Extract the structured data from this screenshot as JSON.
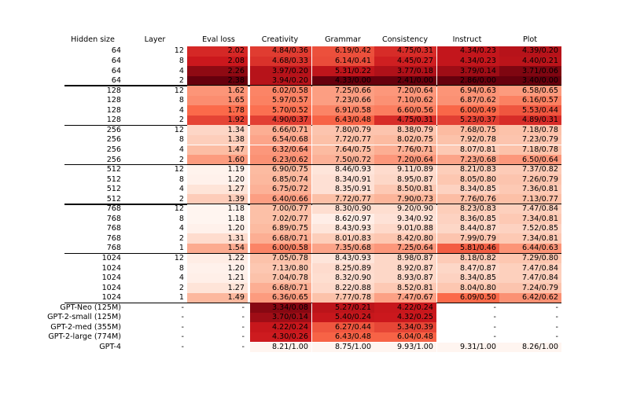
{
  "chart_data": {
    "type": "table",
    "title": "",
    "columns": [
      "Hidden size",
      "Layer",
      "Eval loss",
      "Creativity",
      "Grammar",
      "Consistency",
      "Instruct",
      "Plot"
    ],
    "groups": [
      [
        {
          "hidden": "64",
          "layer": "12",
          "eval": "2.02",
          "creativity": "4.84/0.36",
          "grammar": "6.19/0.42",
          "consistency": "4.75/0.31",
          "instruct": "4.34/0.23",
          "plot": "4.39/0.20"
        },
        {
          "hidden": "64",
          "layer": "8",
          "eval": "2.08",
          "creativity": "4.68/0.33",
          "grammar": "6.14/0.41",
          "consistency": "4.45/0.27",
          "instruct": "4.34/0.23",
          "plot": "4.40/0.21"
        },
        {
          "hidden": "64",
          "layer": "4",
          "eval": "2.26",
          "creativity": "3.97/0.20",
          "grammar": "5.31/0.22",
          "consistency": "3.77/0.18",
          "instruct": "3.79/0.14",
          "plot": "3.71/0.06"
        },
        {
          "hidden": "64",
          "layer": "2",
          "eval": "2.38",
          "creativity": "3.94/0.20",
          "grammar": "4.33/0.00",
          "consistency": "2.41/0.00",
          "instruct": "2.86/0.00",
          "plot": "3.40/0.00"
        }
      ],
      [
        {
          "hidden": "128",
          "layer": "12",
          "eval": "1.62",
          "creativity": "6.02/0.58",
          "grammar": "7.25/0.66",
          "consistency": "7.20/0.64",
          "instruct": "6.94/0.63",
          "plot": "6.58/0.65"
        },
        {
          "hidden": "128",
          "layer": "8",
          "eval": "1.65",
          "creativity": "5.97/0.57",
          "grammar": "7.23/0.66",
          "consistency": "7.10/0.62",
          "instruct": "6.87/0.62",
          "plot": "6.16/0.57"
        },
        {
          "hidden": "128",
          "layer": "4",
          "eval": "1.78",
          "creativity": "5.70/0.52",
          "grammar": "6.91/0.58",
          "consistency": "6.60/0.56",
          "instruct": "6.00/0.49",
          "plot": "5.53/0.44"
        },
        {
          "hidden": "128",
          "layer": "2",
          "eval": "1.92",
          "creativity": "4.90/0.37",
          "grammar": "6.43/0.48",
          "consistency": "4.75/0.31",
          "instruct": "5.23/0.37",
          "plot": "4.89/0.31"
        }
      ],
      [
        {
          "hidden": "256",
          "layer": "12",
          "eval": "1.34",
          "creativity": "6.66/0.71",
          "grammar": "7.80/0.79",
          "consistency": "8.38/0.79",
          "instruct": "7.68/0.75",
          "plot": "7.18/0.78"
        },
        {
          "hidden": "256",
          "layer": "8",
          "eval": "1.38",
          "creativity": "6.54/0.68",
          "grammar": "7.72/0.77",
          "consistency": "8.02/0.75",
          "instruct": "7.92/0.78",
          "plot": "7.23/0.79"
        },
        {
          "hidden": "256",
          "layer": "4",
          "eval": "1.47",
          "creativity": "6.32/0.64",
          "grammar": "7.64/0.75",
          "consistency": "7.76/0.71",
          "instruct": "8.07/0.81",
          "plot": "7.18/0.78"
        },
        {
          "hidden": "256",
          "layer": "2",
          "eval": "1.60",
          "creativity": "6.23/0.62",
          "grammar": "7.50/0.72",
          "consistency": "7.20/0.64",
          "instruct": "7.23/0.68",
          "plot": "6.50/0.64"
        }
      ],
      [
        {
          "hidden": "512",
          "layer": "12",
          "eval": "1.19",
          "creativity": "6.90/0.75",
          "grammar": "8.46/0.93",
          "consistency": "9.11/0.89",
          "instruct": "8.21/0.83",
          "plot": "7.37/0.82"
        },
        {
          "hidden": "512",
          "layer": "8",
          "eval": "1.20",
          "creativity": "6.85/0.74",
          "grammar": "8.34/0.91",
          "consistency": "8.95/0.87",
          "instruct": "8.05/0.80",
          "plot": "7.26/0.79"
        },
        {
          "hidden": "512",
          "layer": "4",
          "eval": "1.27",
          "creativity": "6.75/0.72",
          "grammar": "8.35/0.91",
          "consistency": "8.50/0.81",
          "instruct": "8.34/0.85",
          "plot": "7.36/0.81"
        },
        {
          "hidden": "512",
          "layer": "2",
          "eval": "1.39",
          "creativity": "6.40/0.66",
          "grammar": "7.72/0.77",
          "consistency": "7.90/0.73",
          "instruct": "7.76/0.76",
          "plot": "7.13/0.77"
        }
      ],
      [
        {
          "hidden": "768",
          "layer": "12",
          "eval": "1.18",
          "creativity": "7.00/0.77",
          "grammar": "8.30/0.90",
          "consistency": "9.20/0.90",
          "instruct": "8.23/0.83",
          "plot": "7.47/0.84"
        },
        {
          "hidden": "768",
          "layer": "8",
          "eval": "1.18",
          "creativity": "7.02/0.77",
          "grammar": "8.62/0.97",
          "consistency": "9.34/0.92",
          "instruct": "8.36/0.85",
          "plot": "7.34/0.81"
        },
        {
          "hidden": "768",
          "layer": "4",
          "eval": "1.20",
          "creativity": "6.89/0.75",
          "grammar": "8.43/0.93",
          "consistency": "9.01/0.88",
          "instruct": "8.44/0.87",
          "plot": "7.52/0.85"
        },
        {
          "hidden": "768",
          "layer": "2",
          "eval": "1.31",
          "creativity": "6.68/0.71",
          "grammar": "8.01/0.83",
          "consistency": "8.42/0.80",
          "instruct": "7.99/0.79",
          "plot": "7.34/0.81"
        },
        {
          "hidden": "768",
          "layer": "1",
          "eval": "1.54",
          "creativity": "6.00/0.58",
          "grammar": "7.35/0.68",
          "consistency": "7.25/0.64",
          "instruct": "5.81/0.46",
          "plot": "6.44/0.63"
        }
      ],
      [
        {
          "hidden": "1024",
          "layer": "12",
          "eval": "1.22",
          "creativity": "7.05/0.78",
          "grammar": "8.43/0.93",
          "consistency": "8.98/0.87",
          "instruct": "8.18/0.82",
          "plot": "7.29/0.80"
        },
        {
          "hidden": "1024",
          "layer": "8",
          "eval": "1.20",
          "creativity": "7.13/0.80",
          "grammar": "8.25/0.89",
          "consistency": "8.92/0.87",
          "instruct": "8.47/0.87",
          "plot": "7.47/0.84"
        },
        {
          "hidden": "1024",
          "layer": "4",
          "eval": "1.21",
          "creativity": "7.04/0.78",
          "grammar": "8.32/0.90",
          "consistency": "8.93/0.87",
          "instruct": "8.34/0.85",
          "plot": "7.47/0.84"
        },
        {
          "hidden": "1024",
          "layer": "2",
          "eval": "1.27",
          "creativity": "6.68/0.71",
          "grammar": "8.22/0.88",
          "consistency": "8.52/0.81",
          "instruct": "8.04/0.80",
          "plot": "7.24/0.79"
        },
        {
          "hidden": "1024",
          "layer": "1",
          "eval": "1.49",
          "creativity": "6.36/0.65",
          "grammar": "7.77/0.78",
          "consistency": "7.47/0.67",
          "instruct": "6.09/0.50",
          "plot": "6.42/0.62"
        }
      ],
      [
        {
          "hidden": "GPT-Neo (125M)",
          "layer": "-",
          "eval": "-",
          "creativity": "3.34/0.08",
          "grammar": "5.27/0.21",
          "consistency": "4.22/0.24",
          "instruct": "-",
          "plot": "-"
        },
        {
          "hidden": "GPT-2-small (125M)",
          "layer": "-",
          "eval": "-",
          "creativity": "3.70/0.14",
          "grammar": "5.40/0.24",
          "consistency": "4.32/0.25",
          "instruct": "-",
          "plot": "-"
        },
        {
          "hidden": "GPT-2-med (355M)",
          "layer": "-",
          "eval": "-",
          "creativity": "4.22/0.24",
          "grammar": "6.27/0.44",
          "consistency": "5.34/0.39",
          "instruct": "-",
          "plot": "-"
        },
        {
          "hidden": "GPT-2-large (774M)",
          "layer": "-",
          "eval": "-",
          "creativity": "4.30/0.26",
          "grammar": "6.43/0.48",
          "consistency": "6.04/0.48",
          "instruct": "-",
          "plot": "-"
        },
        {
          "hidden": "GPT-4",
          "layer": "-",
          "eval": "-",
          "creativity": "8.21/1.00",
          "grammar": "8.75/1.00",
          "consistency": "9.93/1.00",
          "instruct": "9.31/1.00",
          "plot": "8.26/1.00"
        }
      ]
    ],
    "shading": {
      "colormap": "white-to-dark-red",
      "eval_loss_range": [
        1.18,
        2.38
      ],
      "normalized_score_range": [
        0,
        1
      ],
      "colors": [
        "#fff5f0",
        "#fcbba1",
        "#fb6a4a",
        "#cb181d",
        "#67000d"
      ]
    },
    "grid": false
  }
}
